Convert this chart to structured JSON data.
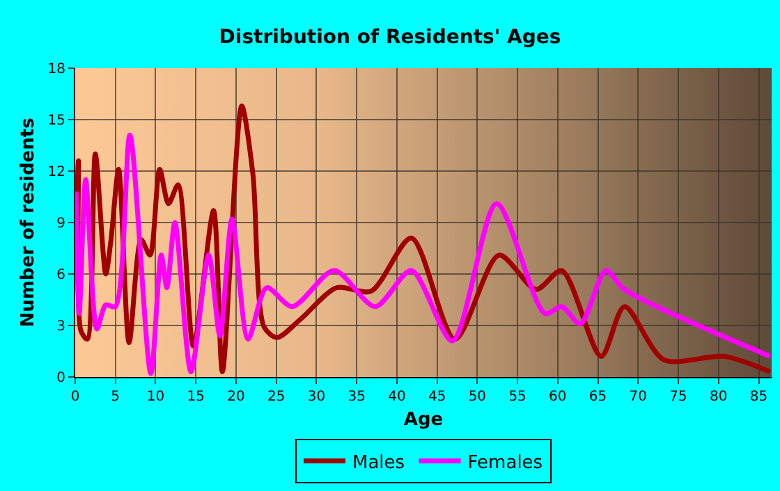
{
  "chart_data": {
    "type": "line",
    "title": "Distribution of Residents' Ages",
    "xlabel": "Age",
    "ylabel": "Number of residents",
    "xlim": [
      0,
      86.6
    ],
    "xticks": [
      0,
      5,
      10,
      15,
      20,
      25,
      30,
      35,
      40,
      45,
      50,
      55,
      60,
      65,
      70,
      75,
      80,
      85
    ],
    "ylim": [
      0,
      18
    ],
    "yticks": [
      0,
      3,
      6,
      9,
      12,
      15,
      18
    ],
    "grid": true,
    "legend": "bottom",
    "marker": "none",
    "line_style": "solid",
    "series": [
      {
        "name": "Males",
        "color": "#a00000",
        "x": [
          0.1,
          0.4,
          0.7,
          1.5,
          2.5,
          3.8,
          4.45,
          5.4,
          6.7,
          8.2,
          9.3,
          10.5,
          11.6,
          12.8,
          14.7,
          17.2,
          18.3,
          20.7,
          22.1,
          23.5,
          25.1,
          28.1,
          32.5,
          36.8,
          41.8,
          47.2,
          52.7,
          57.3,
          60.5,
          65.4,
          68.3,
          73.2,
          80.7,
          86.4
        ],
        "values": [
          8.3,
          12.6,
          2.7,
          2.2,
          13.0,
          6.0,
          8.0,
          12.1,
          2.0,
          8.0,
          7.1,
          12.1,
          10.1,
          11.2,
          1.8,
          9.7,
          0.3,
          15.8,
          11.8,
          2.9,
          2.3,
          3.4,
          5.2,
          5.0,
          8.1,
          2.2,
          7.1,
          5.1,
          6.2,
          1.2,
          4.1,
          1.0,
          1.2,
          0.3
        ]
      },
      {
        "name": "Females",
        "color": "#ff00ff",
        "x": [
          0.1,
          0.5,
          1.3,
          2.7,
          3.8,
          5.0,
          6.8,
          9.4,
          10.7,
          11.4,
          12.4,
          14.4,
          16.6,
          18.0,
          19.5,
          21.5,
          23.8,
          27.0,
          32.2,
          37.3,
          41.8,
          46.9,
          52.4,
          58.4,
          60.5,
          62.8,
          66.0,
          68.3,
          86.4
        ],
        "values": [
          10.8,
          3.7,
          11.5,
          2.8,
          4.2,
          4.1,
          14.1,
          0.2,
          7.1,
          5.2,
          9.0,
          0.3,
          7.1,
          2.4,
          9.2,
          2.2,
          5.2,
          4.1,
          6.2,
          4.1,
          6.2,
          2.1,
          10.1,
          3.7,
          4.1,
          3.1,
          6.2,
          5.1,
          1.2
        ]
      }
    ]
  }
}
